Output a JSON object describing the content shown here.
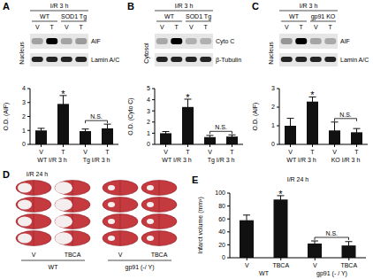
{
  "chart_data": [
    {
      "panel": "A",
      "type": "bar",
      "blot": {
        "header": "I/R 3 h",
        "groups": [
          "WT",
          "SOD1 Tg"
        ],
        "lanes": [
          "V",
          "T",
          "V",
          "T"
        ],
        "compartment": "Nucleus",
        "bands": [
          "AIF",
          "Lamin A/C"
        ]
      },
      "y_label": "O.D. (AIF)",
      "categories": [
        "V",
        "T",
        "V",
        "T"
      ],
      "groups": [
        "WT I/R 3 h",
        "Tg I/R 3 h"
      ],
      "values": [
        1,
        2.9,
        0.95,
        1.15
      ],
      "errors": [
        0.15,
        0.6,
        0.15,
        0.3
      ],
      "color": "#111111",
      "ylim": [
        0,
        4
      ],
      "yticks": [
        0,
        1,
        2,
        3,
        4
      ],
      "grid": false,
      "annotations": [
        {
          "text": "*",
          "index": 1
        },
        {
          "text": "N.S.",
          "span": [
            2,
            3
          ]
        }
      ]
    },
    {
      "panel": "B",
      "type": "bar",
      "blot": {
        "header": "I/R 3 h",
        "groups": [
          "WT",
          "SOD1 Tg"
        ],
        "lanes": [
          "V",
          "T",
          "V",
          "T"
        ],
        "compartment": "Cytosol",
        "bands": [
          "Cyto C",
          "β-Tubulin"
        ]
      },
      "y_label": "O.D. (Cyto C)",
      "categories": [
        "V",
        "T",
        "V",
        "T"
      ],
      "groups": [
        "WT I/R 3 h",
        "Tg I/R 3 h"
      ],
      "values": [
        1,
        3.35,
        0.65,
        0.7
      ],
      "errors": [
        0.15,
        0.7,
        0.15,
        0.15
      ],
      "color": "#111111",
      "ylim": [
        0,
        5
      ],
      "yticks": [
        0,
        1,
        2,
        3,
        4,
        5
      ],
      "grid": false,
      "annotations": [
        {
          "text": "*",
          "index": 1
        },
        {
          "text": "N.S.",
          "span": [
            2,
            3
          ]
        }
      ]
    },
    {
      "panel": "C",
      "type": "bar",
      "blot": {
        "header": "I/R 3 h",
        "groups": [
          "WT",
          "gp91 KO"
        ],
        "lanes": [
          "V",
          "T",
          "V",
          "T"
        ],
        "compartment": "Nucleus",
        "bands": [
          "AIF",
          "Lamin A/C"
        ]
      },
      "y_label": "O.D. (AIF)",
      "categories": [
        "V",
        "T",
        "V",
        "T"
      ],
      "groups": [
        "WT I/R 3 h",
        "KO I/R 3 h"
      ],
      "values": [
        1,
        2.3,
        0.75,
        0.65
      ],
      "errors": [
        0.4,
        0.25,
        0.45,
        0.2
      ],
      "color": "#111111",
      "ylim": [
        0,
        3
      ],
      "yticks": [
        0,
        1,
        2,
        3
      ],
      "grid": false,
      "annotations": [
        {
          "text": "*",
          "index": 1
        },
        {
          "text": "N.S.",
          "span": [
            2,
            3
          ]
        }
      ]
    },
    {
      "panel": "E",
      "type": "bar",
      "title": "I/R 24 h",
      "y_label": "Infarct volume (mm³)",
      "categories": [
        "V",
        "TBCA",
        "V",
        "TBCA"
      ],
      "groups": [
        "WT",
        "gp91 (- / Y)"
      ],
      "values": [
        58,
        90,
        22,
        19
      ],
      "errors": [
        8,
        6,
        4,
        6
      ],
      "color": "#111111",
      "ylim": [
        0,
        100
      ],
      "yticks": [
        0,
        20,
        40,
        60,
        80,
        100
      ],
      "grid": false,
      "annotations": [
        {
          "text": "*",
          "index": 1
        },
        {
          "text": "N.S.",
          "span": [
            2,
            3
          ]
        }
      ]
    }
  ],
  "panel_D": {
    "panel": "D",
    "title": "I/R 24 h",
    "columns": [
      "V",
      "TBCA",
      "V",
      "TBCA"
    ],
    "groups": [
      "WT",
      "gp91 (-/ Y)"
    ]
  }
}
